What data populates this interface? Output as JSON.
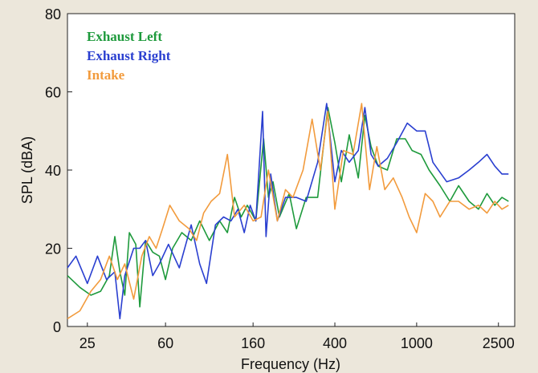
{
  "chart_data": {
    "type": "line",
    "xlabel": "Frequency (Hz)",
    "ylabel": "SPL (dBA)",
    "xscale": "log",
    "xlim": [
      20,
      3000
    ],
    "ylim": [
      0,
      80
    ],
    "xticks": [
      25,
      60,
      160,
      400,
      1000,
      2500
    ],
    "xtick_labels": [
      "25",
      "60",
      "160",
      "400",
      "1000",
      "2500"
    ],
    "yticks": [
      0,
      20,
      40,
      60,
      80
    ],
    "ytick_labels": [
      "0",
      "20",
      "40",
      "60",
      "80"
    ],
    "grid": false,
    "legend_position": "top-left",
    "series": [
      {
        "name": "Exhaust Left",
        "color": "#1e9a3c",
        "points": [
          [
            20,
            13
          ],
          [
            23,
            10
          ],
          [
            26,
            8
          ],
          [
            29,
            9
          ],
          [
            32,
            13
          ],
          [
            34,
            23
          ],
          [
            36,
            14
          ],
          [
            38,
            8
          ],
          [
            40,
            24
          ],
          [
            43,
            21
          ],
          [
            45,
            5
          ],
          [
            48,
            22
          ],
          [
            52,
            19
          ],
          [
            56,
            18
          ],
          [
            60,
            12
          ],
          [
            65,
            20
          ],
          [
            72,
            24
          ],
          [
            80,
            22
          ],
          [
            88,
            27
          ],
          [
            98,
            22
          ],
          [
            110,
            27
          ],
          [
            120,
            24
          ],
          [
            130,
            33
          ],
          [
            140,
            28
          ],
          [
            150,
            31
          ],
          [
            165,
            27
          ],
          [
            180,
            48
          ],
          [
            190,
            33
          ],
          [
            200,
            37
          ],
          [
            215,
            28
          ],
          [
            240,
            34
          ],
          [
            260,
            25
          ],
          [
            290,
            33
          ],
          [
            330,
            33
          ],
          [
            370,
            56
          ],
          [
            400,
            47
          ],
          [
            430,
            37
          ],
          [
            470,
            49
          ],
          [
            520,
            38
          ],
          [
            560,
            54
          ],
          [
            600,
            46
          ],
          [
            650,
            41
          ],
          [
            720,
            40
          ],
          [
            800,
            48
          ],
          [
            880,
            48
          ],
          [
            950,
            45
          ],
          [
            1050,
            44
          ],
          [
            1150,
            40
          ],
          [
            1300,
            36
          ],
          [
            1450,
            32
          ],
          [
            1600,
            36
          ],
          [
            1800,
            32
          ],
          [
            2000,
            30
          ],
          [
            2200,
            34
          ],
          [
            2400,
            31
          ],
          [
            2600,
            33
          ],
          [
            2800,
            32
          ]
        ]
      },
      {
        "name": "Exhaust Right",
        "color": "#2a3fd0",
        "points": [
          [
            20,
            15
          ],
          [
            22,
            18
          ],
          [
            25,
            11
          ],
          [
            28,
            18
          ],
          [
            31,
            12
          ],
          [
            34,
            14
          ],
          [
            36,
            2
          ],
          [
            38,
            13
          ],
          [
            42,
            20
          ],
          [
            45,
            20
          ],
          [
            48,
            22
          ],
          [
            52,
            13
          ],
          [
            56,
            16
          ],
          [
            62,
            21
          ],
          [
            70,
            15
          ],
          [
            80,
            26
          ],
          [
            88,
            16
          ],
          [
            95,
            11
          ],
          [
            105,
            26
          ],
          [
            115,
            28
          ],
          [
            125,
            27
          ],
          [
            135,
            30
          ],
          [
            145,
            24
          ],
          [
            155,
            31
          ],
          [
            165,
            27
          ],
          [
            178,
            55
          ],
          [
            185,
            23
          ],
          [
            195,
            39
          ],
          [
            210,
            27
          ],
          [
            230,
            33
          ],
          [
            260,
            33
          ],
          [
            290,
            32
          ],
          [
            330,
            42
          ],
          [
            365,
            57
          ],
          [
            400,
            37
          ],
          [
            430,
            45
          ],
          [
            470,
            42
          ],
          [
            520,
            45
          ],
          [
            560,
            56
          ],
          [
            600,
            44
          ],
          [
            650,
            41
          ],
          [
            720,
            43
          ],
          [
            800,
            47
          ],
          [
            900,
            52
          ],
          [
            1000,
            50
          ],
          [
            1100,
            50
          ],
          [
            1200,
            42
          ],
          [
            1400,
            37
          ],
          [
            1600,
            38
          ],
          [
            1800,
            40
          ],
          [
            2000,
            42
          ],
          [
            2200,
            44
          ],
          [
            2400,
            41
          ],
          [
            2600,
            39
          ],
          [
            2800,
            39
          ]
        ]
      },
      {
        "name": "Intake",
        "color": "#f29b3d",
        "points": [
          [
            20,
            2
          ],
          [
            23,
            4
          ],
          [
            26,
            9
          ],
          [
            29,
            12
          ],
          [
            32,
            18
          ],
          [
            35,
            12
          ],
          [
            38,
            16
          ],
          [
            42,
            7
          ],
          [
            46,
            18
          ],
          [
            50,
            23
          ],
          [
            54,
            20
          ],
          [
            58,
            25
          ],
          [
            63,
            31
          ],
          [
            70,
            27
          ],
          [
            78,
            25
          ],
          [
            85,
            22
          ],
          [
            92,
            29
          ],
          [
            100,
            32
          ],
          [
            110,
            34
          ],
          [
            120,
            44
          ],
          [
            130,
            28
          ],
          [
            145,
            31
          ],
          [
            160,
            27
          ],
          [
            175,
            28
          ],
          [
            190,
            40
          ],
          [
            210,
            27
          ],
          [
            230,
            35
          ],
          [
            250,
            33
          ],
          [
            280,
            40
          ],
          [
            310,
            53
          ],
          [
            340,
            40
          ],
          [
            370,
            55
          ],
          [
            400,
            30
          ],
          [
            440,
            45
          ],
          [
            490,
            44
          ],
          [
            540,
            57
          ],
          [
            590,
            35
          ],
          [
            640,
            46
          ],
          [
            700,
            35
          ],
          [
            770,
            38
          ],
          [
            850,
            33
          ],
          [
            920,
            28
          ],
          [
            1000,
            24
          ],
          [
            1100,
            34
          ],
          [
            1200,
            32
          ],
          [
            1300,
            28
          ],
          [
            1450,
            32
          ],
          [
            1600,
            32
          ],
          [
            1800,
            30
          ],
          [
            2000,
            31
          ],
          [
            2200,
            29
          ],
          [
            2400,
            32
          ],
          [
            2600,
            30
          ],
          [
            2800,
            31
          ]
        ]
      }
    ]
  }
}
